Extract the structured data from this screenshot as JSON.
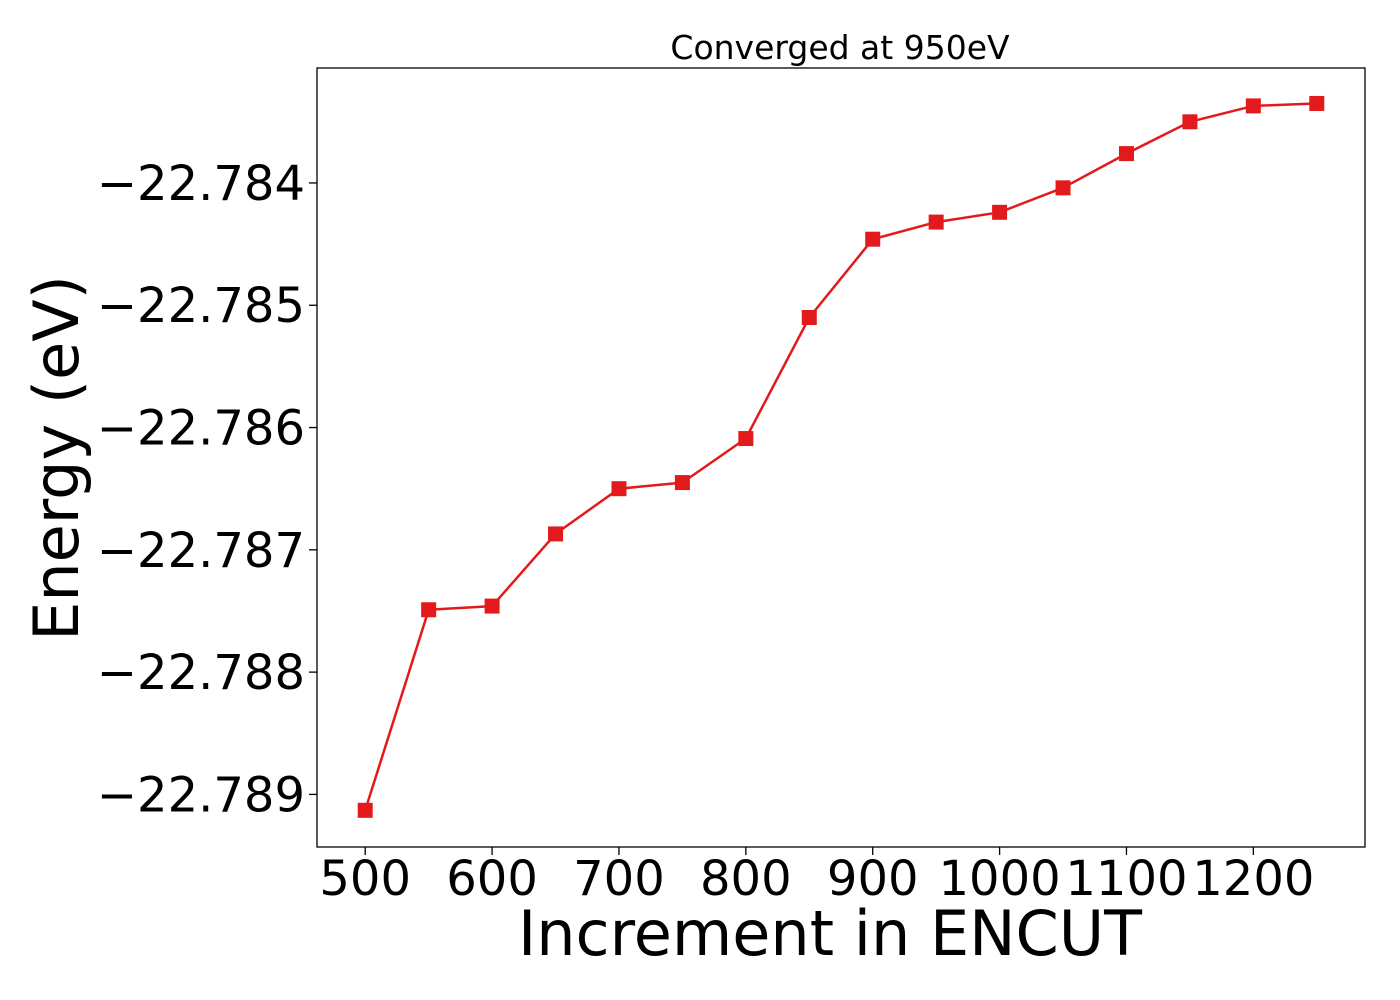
{
  "chart_data": {
    "type": "line",
    "title": "Converged at 950eV",
    "xlabel": "Increment in ENCUT",
    "ylabel": "Energy (eV)",
    "x": [
      500,
      550,
      600,
      650,
      700,
      750,
      800,
      850,
      900,
      950,
      1000,
      1050,
      1100,
      1150,
      1200,
      1250
    ],
    "series": [
      {
        "values": [
          -22.78913,
          -22.78749,
          -22.78746,
          -22.78687,
          -22.7865,
          -22.78645,
          -22.78609,
          -22.7851,
          -22.78446,
          -22.78432,
          -22.78424,
          -22.78404,
          -22.78376,
          -22.7835,
          -22.78337,
          -22.78335
        ],
        "color": "#e31a1c",
        "marker": "square"
      }
    ],
    "xticks": [
      500,
      600,
      700,
      800,
      900,
      1000,
      1100,
      1200
    ],
    "xtick_labels": [
      "500",
      "600",
      "700",
      "800",
      "900",
      "1000",
      "1100",
      "1200"
    ],
    "yticks": [
      -22.784,
      -22.785,
      -22.786,
      -22.787,
      -22.788,
      -22.789
    ],
    "ytick_labels": [
      "−22.784",
      "−22.785",
      "−22.786",
      "−22.787",
      "−22.788",
      "−22.789"
    ],
    "xlim": [
      462,
      1288
    ],
    "ylim": [
      -22.78943,
      -22.78306
    ],
    "grid": false,
    "legend": false
  }
}
